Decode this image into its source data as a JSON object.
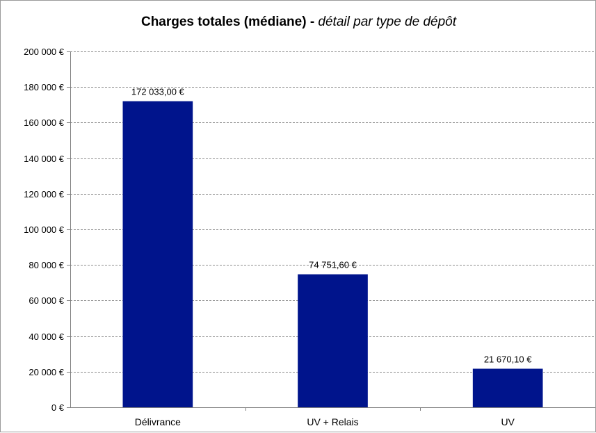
{
  "chart_data": {
    "type": "bar",
    "title": "Charges totales (médiane) - ",
    "subtitle": "détail par type de dépôt",
    "xlabel": "",
    "ylabel": "",
    "categories": [
      "Délivrance",
      "UV + Relais",
      "UV"
    ],
    "values": [
      172033.0,
      74751.6,
      21670.1
    ],
    "data_labels": [
      "172 033,00 €",
      "74 751,60 €",
      "21 670,10 €"
    ],
    "ylim": [
      0,
      200000
    ],
    "yticks": [
      0,
      20000,
      40000,
      60000,
      80000,
      100000,
      120000,
      140000,
      160000,
      180000,
      200000
    ],
    "ytick_labels": [
      "0 €",
      "20 000 €",
      "40 000 €",
      "60 000 €",
      "80 000 €",
      "100 000 €",
      "120 000 €",
      "140 000 €",
      "160 000 €",
      "180 000 €",
      "200 000 €"
    ],
    "grid": true,
    "legend": "none",
    "bar_color": "#00148c",
    "grid_color": "#8c8c8c"
  }
}
